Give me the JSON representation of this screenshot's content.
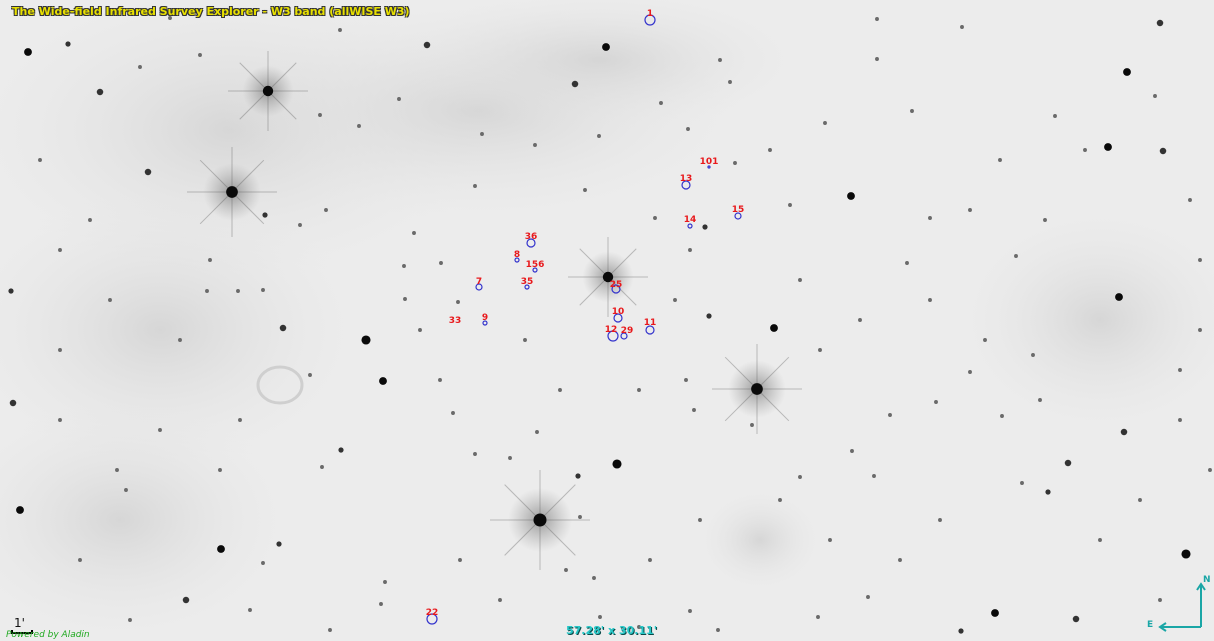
{
  "view": {
    "survey_title": "The Wide-field Infrared Survey Explorer - W3 band (allWISE W3)",
    "field_of_view": "57.28' x 30.11'",
    "powered_by": "Powered by Aladin",
    "scale_label": "1'",
    "compass": {
      "north": "N",
      "east": "E"
    }
  },
  "sources": [
    {
      "id": "1",
      "label": "1"
    },
    {
      "id": "101",
      "label": "101"
    },
    {
      "id": "13",
      "label": "13"
    },
    {
      "id": "14",
      "label": "14"
    },
    {
      "id": "15",
      "label": "15"
    },
    {
      "id": "36",
      "label": "36"
    },
    {
      "id": "8",
      "label": "8"
    },
    {
      "id": "156",
      "label": "156"
    },
    {
      "id": "7",
      "label": "7"
    },
    {
      "id": "35",
      "label": "35"
    },
    {
      "id": "25",
      "label": "25"
    },
    {
      "id": "9",
      "label": "9"
    },
    {
      "id": "33",
      "label": "33"
    },
    {
      "id": "10",
      "label": "10"
    },
    {
      "id": "11",
      "label": "11"
    },
    {
      "id": "12",
      "label": "12"
    },
    {
      "id": "29",
      "label": "29"
    },
    {
      "id": "22",
      "label": "22"
    }
  ],
  "colors": {
    "marker": "#3333cc",
    "source_label": "#e8191c",
    "title": "#e8e000",
    "fov": "#26c7c7",
    "compass": "#1aa6a6",
    "powered": "#22aa22"
  }
}
